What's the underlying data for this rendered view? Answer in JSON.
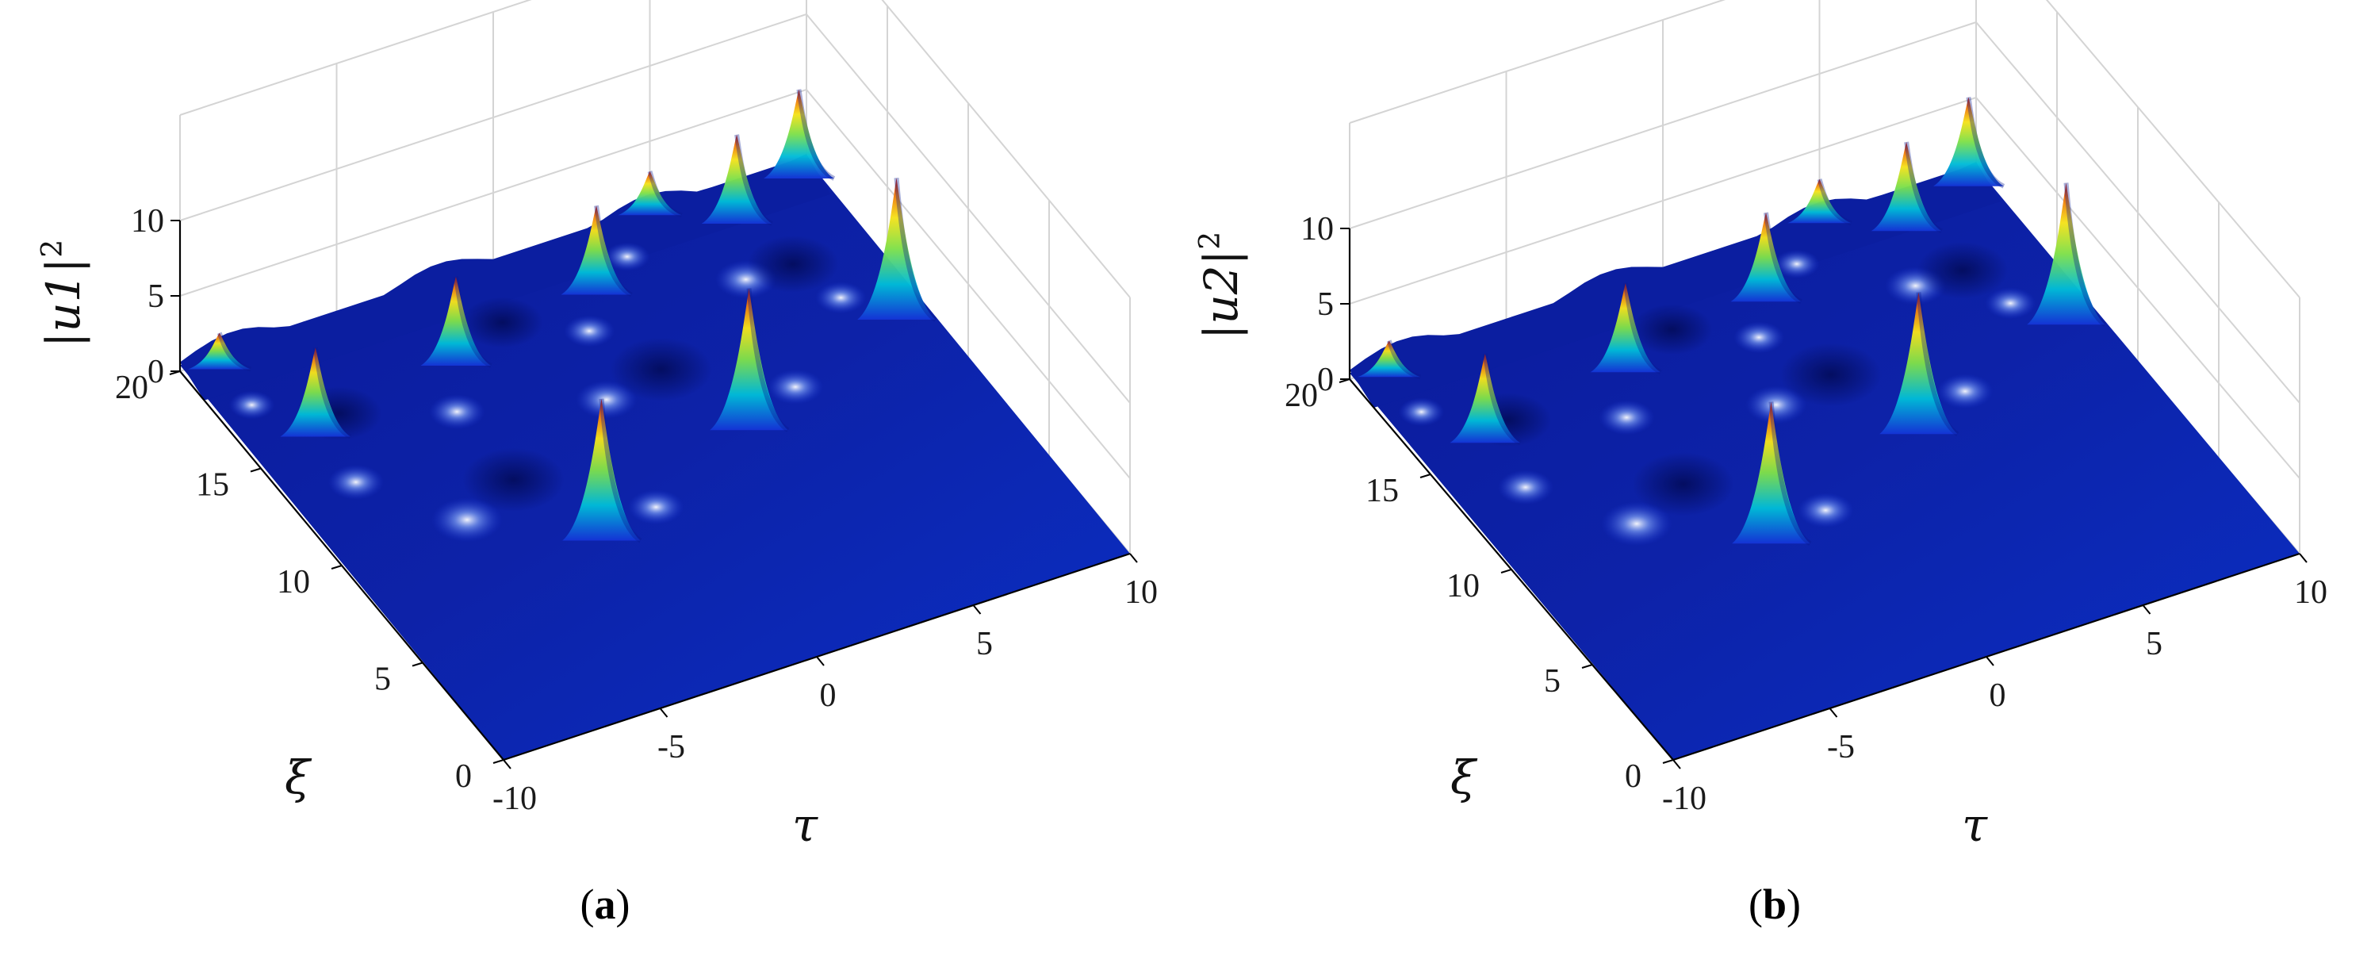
{
  "chart_data": [
    {
      "panel_label": "(a)",
      "type": "surface",
      "x": {
        "label": "τ",
        "ticks": [
          "-10",
          "-5",
          "0",
          "5",
          "10"
        ],
        "range": [
          -10,
          10
        ]
      },
      "y": {
        "label": "ξ",
        "ticks": [
          "0",
          "5",
          "10",
          "15",
          "20"
        ],
        "range": [
          0,
          20
        ]
      },
      "z": {
        "label": "|u1|²",
        "label_base": "|u1|",
        "label_exp": "2",
        "ticks": [
          "0",
          "5",
          "10"
        ],
        "range": [
          0,
          10
        ]
      },
      "colormap": "jet",
      "peaks": [
        {
          "tau": -3,
          "xi": 7.5,
          "value": 9.5
        },
        {
          "tau": 3,
          "xi": 10,
          "value": 9.5
        },
        {
          "tau": 9,
          "xi": 12.5,
          "value": 9.5
        },
        {
          "tau": -8,
          "xi": 15.5,
          "value": 6
        },
        {
          "tau": -3,
          "xi": 16.5,
          "value": 6
        },
        {
          "tau": 2,
          "xi": 17.5,
          "value": 6
        },
        {
          "tau": 7,
          "xi": 18.5,
          "value": 6
        },
        {
          "tau": 9.5,
          "xi": 19.5,
          "value": 6
        },
        {
          "tau": -9,
          "xi": 19.5,
          "value": 2.5
        },
        {
          "tau": 5,
          "xi": 20,
          "value": 3
        }
      ]
    },
    {
      "panel_label": "(b)",
      "type": "surface",
      "x": {
        "label": "τ",
        "ticks": [
          "-10",
          "-5",
          "0",
          "5",
          "10"
        ],
        "range": [
          -10,
          10
        ]
      },
      "y": {
        "label": "ξ",
        "ticks": [
          "0",
          "5",
          "10",
          "15",
          "20"
        ],
        "range": [
          0,
          20
        ]
      },
      "z": {
        "label": "|u2|²",
        "label_base": "|u2|",
        "label_exp": "2",
        "ticks": [
          "0",
          "5",
          "10"
        ],
        "range": [
          0,
          10
        ]
      },
      "colormap": "jet",
      "peaks": [
        {
          "tau": -3,
          "xi": 7.5,
          "value": 9.5
        },
        {
          "tau": 3,
          "xi": 10,
          "value": 9.5
        },
        {
          "tau": 9,
          "xi": 12.5,
          "value": 9.5
        },
        {
          "tau": -8,
          "xi": 15.5,
          "value": 6
        },
        {
          "tau": -3,
          "xi": 16.5,
          "value": 6
        },
        {
          "tau": 2,
          "xi": 17.5,
          "value": 6
        },
        {
          "tau": 7,
          "xi": 18.5,
          "value": 6
        },
        {
          "tau": 9.5,
          "xi": 19.5,
          "value": 6
        },
        {
          "tau": -9,
          "xi": 19.5,
          "value": 2.5
        },
        {
          "tau": 5,
          "xi": 20,
          "value": 3
        }
      ]
    }
  ]
}
